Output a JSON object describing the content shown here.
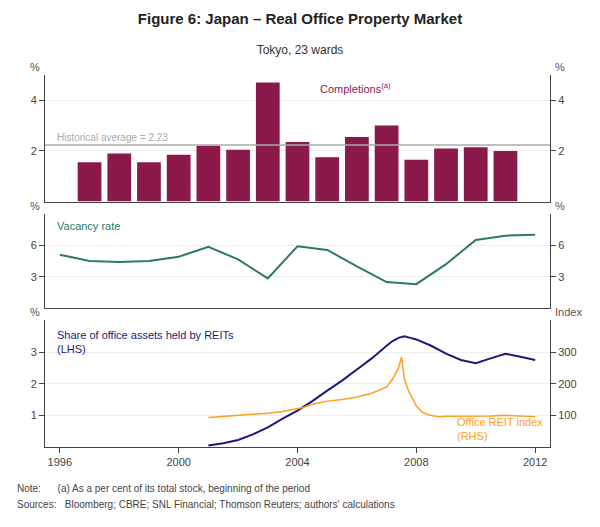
{
  "chart_data": [
    {
      "type": "bar",
      "title": "Figure 6: Japan – Real Office Property Market",
      "subtitle": "Tokyo, 23 wards",
      "x": [
        1997,
        1998,
        1999,
        2000,
        2001,
        2002,
        2003,
        2004,
        2005,
        2006,
        2007,
        2008,
        2009,
        2010,
        2011
      ],
      "series": [
        {
          "name": "Completions",
          "note_mark": "(a)",
          "color": "#8B1A4A",
          "values": [
            1.55,
            1.9,
            1.55,
            1.85,
            2.2,
            2.05,
            4.7,
            2.35,
            1.75,
            2.55,
            3.0,
            1.65,
            2.1,
            2.15,
            2.0
          ]
        }
      ],
      "reference_line": {
        "value": 2.23,
        "label": "Historical average = 2.23",
        "color": "#AAAAAA"
      },
      "ylabel": "%",
      "y2label": "%",
      "xlim": [
        1995.5,
        2012.5
      ],
      "ylim": [
        0,
        5
      ],
      "yticks": [
        2,
        4
      ],
      "y2lim": [
        0,
        5
      ],
      "y2ticks": [
        2,
        4
      ],
      "grid": true,
      "tick_labels": "y"
    },
    {
      "type": "line",
      "x": [
        1996,
        1997,
        1998,
        1999,
        2000,
        2001,
        2002,
        2003,
        2004,
        2005,
        2006,
        2007,
        2008,
        2009,
        2010,
        2011,
        2012
      ],
      "series": [
        {
          "name": "Vacancy rate",
          "color": "#2A7A6A",
          "values": [
            5.1,
            4.5,
            4.4,
            4.5,
            4.9,
            5.85,
            4.65,
            2.85,
            5.9,
            5.55,
            4.0,
            2.5,
            2.3,
            4.2,
            6.5,
            6.9,
            7.0
          ]
        }
      ],
      "ylabel": "%",
      "y2label": "%",
      "xlim": [
        1995.5,
        2012.5
      ],
      "ylim": [
        0,
        9
      ],
      "yticks": [
        3,
        6
      ],
      "y2lim": [
        0,
        9
      ],
      "y2ticks": [
        3,
        6
      ],
      "grid": true,
      "tick_labels": "y"
    },
    {
      "type": "line",
      "series": [
        {
          "name": "Share of office assets held by REITs (LHS)",
          "color": "#1A1A7A",
          "x": [
            2001.0,
            2001.2,
            2001.5,
            2002.0,
            2002.5,
            2003.0,
            2003.5,
            2004.0,
            2004.5,
            2005.0,
            2005.5,
            2006.0,
            2006.5,
            2007.0,
            2007.2,
            2007.4,
            2007.6,
            2007.8,
            2008.0,
            2008.5,
            2009.0,
            2009.5,
            2010.0,
            2010.5,
            2011.0,
            2011.5,
            2012.0
          ],
          "values": [
            0.05,
            0.08,
            0.12,
            0.22,
            0.4,
            0.62,
            0.9,
            1.15,
            1.45,
            1.78,
            2.1,
            2.45,
            2.8,
            3.2,
            3.35,
            3.45,
            3.5,
            3.45,
            3.4,
            3.2,
            2.95,
            2.75,
            2.65,
            2.8,
            2.95,
            2.85,
            2.75
          ]
        },
        {
          "name": "Office REIT index (RHS)",
          "color": "#FFA020",
          "axis": "y2",
          "x": [
            2001.0,
            2001.5,
            2002.0,
            2002.5,
            2003.0,
            2003.5,
            2004.0,
            2004.2,
            2004.5,
            2005.0,
            2005.5,
            2006.0,
            2006.5,
            2007.0,
            2007.2,
            2007.4,
            2007.5,
            2007.6,
            2007.75,
            2008.0,
            2008.2,
            2008.4,
            2008.6,
            2008.8,
            2009.0,
            2009.5,
            2010.0,
            2010.5,
            2011.0,
            2011.5,
            2012.0
          ],
          "values": [
            93,
            96,
            100,
            102,
            107,
            112,
            120,
            125,
            135,
            145,
            150,
            158,
            170,
            190,
            215,
            250,
            285,
            215,
            175,
            130,
            110,
            102,
            98,
            96,
            97,
            97,
            96,
            98,
            100,
            97,
            96
          ]
        }
      ],
      "notes": [
        "Note:      (a) As a per cent of its total stock, beginning of the period",
        "Sources:   Bloomberg; CBRE; SNL Financial; Thomson Reuters; authors' calculations"
      ],
      "ylabel": "%",
      "y2label": "Index",
      "xlim": [
        1995.5,
        2012.5
      ],
      "xticks": [
        1996,
        2000,
        2004,
        2008,
        2012
      ],
      "ylim": [
        0,
        4
      ],
      "yticks": [
        1,
        2,
        3
      ],
      "y2lim": [
        0,
        400
      ],
      "y2ticks": [
        100,
        200,
        300
      ],
      "grid": true
    }
  ]
}
